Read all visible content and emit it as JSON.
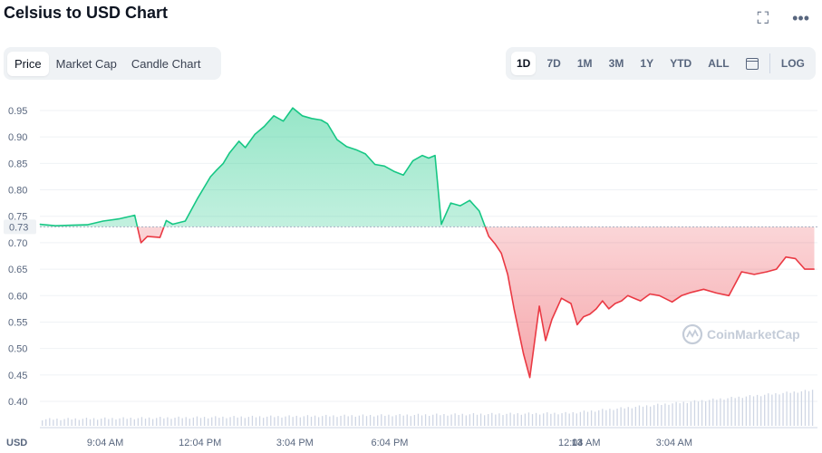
{
  "title": "Celsius to USD Chart",
  "icons": {
    "expand": "expand-icon",
    "more": "more-icon",
    "calendar": "calendar-icon",
    "watermark_logo": "coinmarketcap-logo-icon"
  },
  "tabs": [
    "Price",
    "Market Cap",
    "Candle Chart"
  ],
  "active_tab": "Price",
  "ranges": [
    "1D",
    "7D",
    "1M",
    "3M",
    "1Y",
    "YTD",
    "ALL"
  ],
  "active_range": "1D",
  "log_label": "LOG",
  "watermark": "CoinMarketCap",
  "colors": {
    "up": "#16c784",
    "down": "#ea3943",
    "grid": "#eff2f5",
    "text": "#58667e"
  },
  "chart_data": {
    "type": "area",
    "currency_label": "USD",
    "ylim": [
      0.4,
      0.96
    ],
    "yticks": [
      "0.95",
      "0.90",
      "0.85",
      "0.80",
      "0.75",
      "0.70",
      "0.65",
      "0.60",
      "0.55",
      "0.50",
      "0.45",
      "0.40"
    ],
    "ytick_values": [
      0.95,
      0.9,
      0.85,
      0.8,
      0.75,
      0.7,
      0.65,
      0.6,
      0.55,
      0.5,
      0.45,
      0.4
    ],
    "xticks": [
      "9:04 AM",
      "12:04 PM",
      "3:04 PM",
      "6:04 PM",
      "13",
      "12:04 AM",
      "3:04 AM"
    ],
    "xtick_hours": [
      9.067,
      12.067,
      15.067,
      18.067,
      24,
      24.067,
      27.067
    ],
    "xlim_hours": [
      7.0,
      31.6
    ],
    "reference_price": 0.73,
    "reference_label": "0.73",
    "series": [
      {
        "x_hours": [
          7.0,
          7.5,
          8.0,
          8.5,
          9.0,
          9.5,
          10.0,
          10.2,
          10.4,
          10.8,
          11.0,
          11.2,
          11.6,
          12.0,
          12.4,
          12.6,
          12.8,
          13.0,
          13.3,
          13.5,
          13.8,
          14.1,
          14.4,
          14.7,
          15.0,
          15.3,
          15.6,
          15.9,
          16.1,
          16.4,
          16.7,
          17.0,
          17.3,
          17.6,
          17.9,
          18.2,
          18.5,
          18.8,
          19.1,
          19.3,
          19.5,
          19.7,
          20.0,
          20.3,
          20.6,
          20.9,
          21.2,
          21.4,
          21.6,
          21.8,
          22.0,
          22.3,
          22.5,
          22.8,
          23.0,
          23.2,
          23.5,
          23.8,
          24.0,
          24.2,
          24.4,
          24.6,
          24.8,
          25.0,
          25.2,
          25.4,
          25.6,
          25.8,
          26.0,
          26.3,
          26.6,
          27.0,
          27.3,
          27.6,
          28.0,
          28.4,
          28.8,
          29.2,
          29.6,
          30.0,
          30.3,
          30.6,
          30.9,
          31.2,
          31.5
        ],
        "values": [
          0.735,
          0.732,
          0.733,
          0.734,
          0.741,
          0.745,
          0.752,
          0.7,
          0.712,
          0.71,
          0.742,
          0.735,
          0.741,
          0.785,
          0.825,
          0.838,
          0.85,
          0.87,
          0.892,
          0.88,
          0.905,
          0.92,
          0.94,
          0.93,
          0.955,
          0.94,
          0.935,
          0.932,
          0.925,
          0.895,
          0.882,
          0.876,
          0.868,
          0.848,
          0.845,
          0.835,
          0.828,
          0.855,
          0.865,
          0.86,
          0.865,
          0.735,
          0.775,
          0.77,
          0.78,
          0.76,
          0.712,
          0.698,
          0.68,
          0.64,
          0.575,
          0.49,
          0.445,
          0.58,
          0.515,
          0.555,
          0.595,
          0.585,
          0.545,
          0.56,
          0.565,
          0.575,
          0.59,
          0.575,
          0.585,
          0.59,
          0.6,
          0.595,
          0.59,
          0.603,
          0.6,
          0.588,
          0.6,
          0.606,
          0.612,
          0.605,
          0.6,
          0.645,
          0.64,
          0.645,
          0.65,
          0.673,
          0.67,
          0.65,
          0.65
        ]
      }
    ],
    "volume_bars_count": 210
  }
}
